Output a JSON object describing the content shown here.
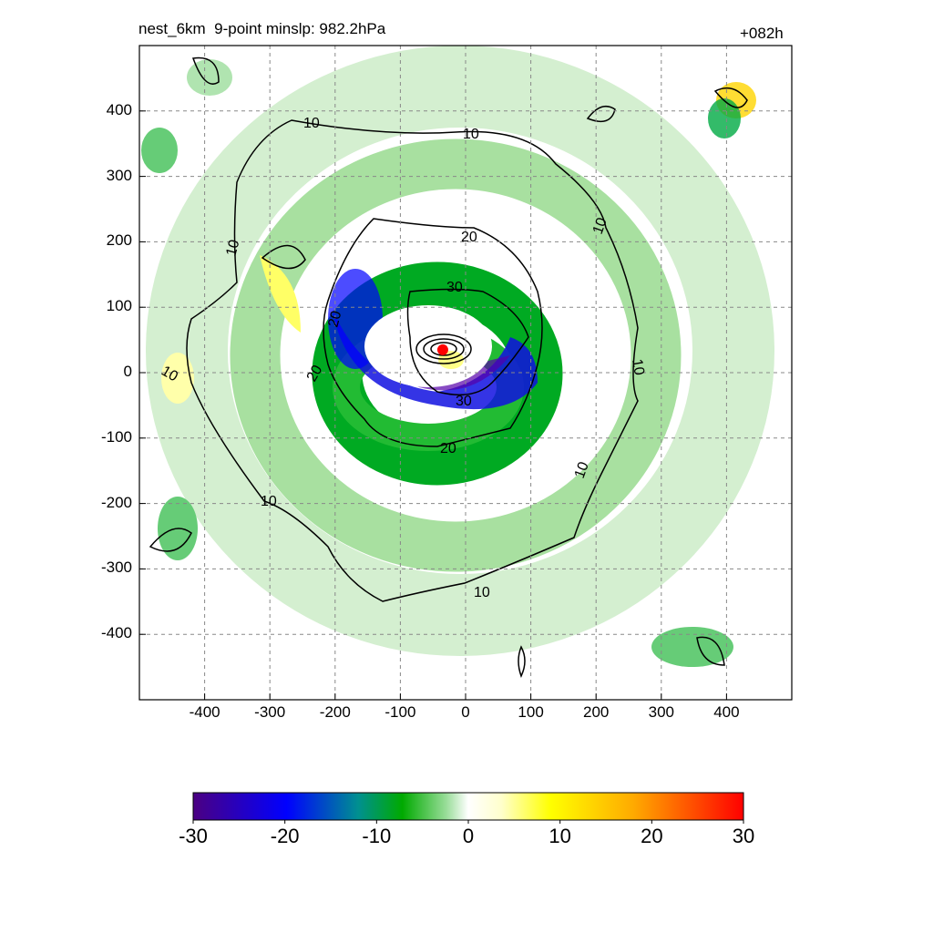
{
  "header": {
    "left_title": "nest_6km  9-point minslp: 982.2hPa",
    "right_title": "+082h"
  },
  "chart_data": {
    "type": "heatmap",
    "x": {
      "ticks": [
        -400,
        -300,
        -200,
        -100,
        0,
        100,
        200,
        300,
        400
      ],
      "range": [
        -500,
        500
      ]
    },
    "y": {
      "ticks": [
        400,
        300,
        200,
        100,
        0,
        -100,
        -200,
        -300,
        -400
      ],
      "range": [
        -500,
        500
      ]
    },
    "grid": true,
    "contour_labels": [
      "10",
      "10",
      "10",
      "10",
      "10",
      "10",
      "10",
      "10",
      "10",
      "20",
      "20",
      "20",
      "20",
      "30",
      "30"
    ],
    "center_marker": {
      "x": -35,
      "y": 35,
      "color": "#ff0000"
    },
    "colorbar": {
      "ticks": [
        -30,
        -20,
        -10,
        0,
        10,
        20,
        30
      ],
      "range": [
        -30,
        30
      ],
      "colors": [
        "#4b0082",
        "#0000ff",
        "#009900",
        "#ffffff",
        "#ffff00",
        "#ff9900",
        "#ff0000"
      ]
    }
  }
}
